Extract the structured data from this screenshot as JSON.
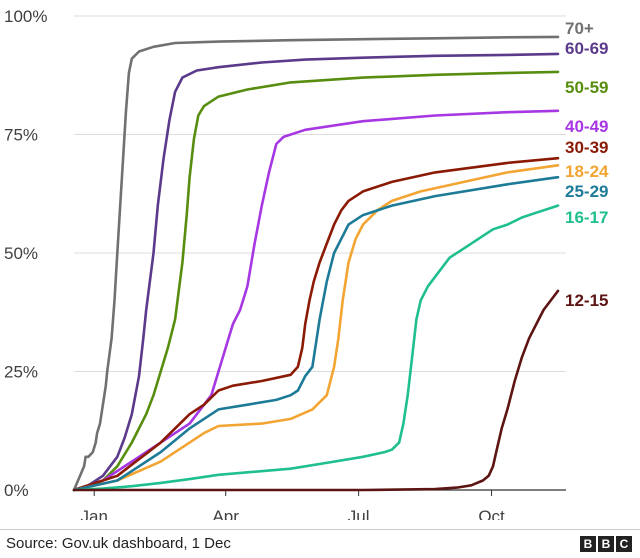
{
  "chart_data": {
    "type": "line",
    "title": "",
    "xlabel": "",
    "ylabel": "",
    "x_tick_labels": [
      "Jan",
      "Apr",
      "Jul",
      "Oct"
    ],
    "y_tick_labels": [
      "0%",
      "25%",
      "50%",
      "75%",
      "100%"
    ],
    "ylim": [
      0,
      100
    ],
    "grid": "horizontal",
    "series": [
      {
        "name": "70+",
        "color": "#717171",
        "points": [
          [
            0,
            0
          ],
          [
            7,
            5
          ],
          [
            8,
            7
          ],
          [
            10,
            7
          ],
          [
            13,
            8
          ],
          [
            15,
            10
          ],
          [
            16,
            12
          ],
          [
            18,
            14
          ],
          [
            20,
            18
          ],
          [
            22,
            22
          ],
          [
            23,
            25
          ],
          [
            26,
            32
          ],
          [
            28,
            40
          ],
          [
            30,
            50
          ],
          [
            32,
            60
          ],
          [
            34,
            70
          ],
          [
            36,
            80
          ],
          [
            38,
            88
          ],
          [
            40,
            91
          ],
          [
            45,
            92.5
          ],
          [
            55,
            93.5
          ],
          [
            70,
            94.3
          ],
          [
            100,
            94.6
          ],
          [
            150,
            94.9
          ],
          [
            200,
            95.1
          ],
          [
            250,
            95.3
          ],
          [
            300,
            95.5
          ],
          [
            335,
            95.6
          ]
        ]
      },
      {
        "name": "60-69",
        "color": "#5b3a8c",
        "points": [
          [
            0,
            0
          ],
          [
            10,
            1
          ],
          [
            20,
            3
          ],
          [
            25,
            5
          ],
          [
            30,
            7
          ],
          [
            35,
            11
          ],
          [
            40,
            16
          ],
          [
            45,
            24
          ],
          [
            48,
            32
          ],
          [
            50,
            38
          ],
          [
            55,
            50
          ],
          [
            58,
            60
          ],
          [
            62,
            70
          ],
          [
            66,
            78
          ],
          [
            70,
            84
          ],
          [
            75,
            87
          ],
          [
            85,
            88.5
          ],
          [
            100,
            89.2
          ],
          [
            130,
            90.2
          ],
          [
            160,
            90.8
          ],
          [
            200,
            91.2
          ],
          [
            250,
            91.6
          ],
          [
            300,
            91.8
          ],
          [
            335,
            92
          ]
        ]
      },
      {
        "name": "50-59",
        "color": "#588e0f",
        "points": [
          [
            0,
            0
          ],
          [
            10,
            1
          ],
          [
            20,
            2
          ],
          [
            30,
            5
          ],
          [
            40,
            10
          ],
          [
            50,
            16
          ],
          [
            55,
            20
          ],
          [
            60,
            25
          ],
          [
            65,
            30
          ],
          [
            70,
            36
          ],
          [
            75,
            48
          ],
          [
            78,
            58
          ],
          [
            80,
            66
          ],
          [
            83,
            74
          ],
          [
            86,
            79
          ],
          [
            90,
            81
          ],
          [
            100,
            83
          ],
          [
            120,
            84.5
          ],
          [
            150,
            86
          ],
          [
            200,
            87
          ],
          [
            250,
            87.6
          ],
          [
            300,
            88
          ],
          [
            335,
            88.2
          ]
        ]
      },
      {
        "name": "40-49",
        "color": "#a637e3",
        "points": [
          [
            0,
            0
          ],
          [
            20,
            2
          ],
          [
            40,
            6
          ],
          [
            60,
            10
          ],
          [
            80,
            14
          ],
          [
            95,
            20
          ],
          [
            100,
            25
          ],
          [
            105,
            30
          ],
          [
            110,
            35
          ],
          [
            115,
            38
          ],
          [
            120,
            43
          ],
          [
            125,
            52
          ],
          [
            130,
            60
          ],
          [
            135,
            67
          ],
          [
            140,
            73
          ],
          [
            145,
            74.5
          ],
          [
            160,
            76
          ],
          [
            200,
            77.8
          ],
          [
            250,
            79
          ],
          [
            300,
            79.7
          ],
          [
            335,
            80
          ]
        ]
      },
      {
        "name": "30-39",
        "color": "#8b1a05",
        "points": [
          [
            0,
            0
          ],
          [
            30,
            3
          ],
          [
            60,
            10
          ],
          [
            80,
            16
          ],
          [
            90,
            18
          ],
          [
            100,
            21
          ],
          [
            110,
            22
          ],
          [
            130,
            23
          ],
          [
            150,
            24.3
          ],
          [
            155,
            26
          ],
          [
            158,
            30
          ],
          [
            160,
            35
          ],
          [
            163,
            40
          ],
          [
            166,
            44
          ],
          [
            170,
            48
          ],
          [
            175,
            52
          ],
          [
            180,
            56
          ],
          [
            185,
            59
          ],
          [
            190,
            61
          ],
          [
            200,
            63
          ],
          [
            220,
            65
          ],
          [
            250,
            67
          ],
          [
            300,
            69
          ],
          [
            335,
            70
          ]
        ]
      },
      {
        "name": "18-24",
        "color": "#f2a533",
        "points": [
          [
            0,
            0
          ],
          [
            30,
            2
          ],
          [
            60,
            6
          ],
          [
            80,
            10
          ],
          [
            90,
            12
          ],
          [
            100,
            13.5
          ],
          [
            130,
            14
          ],
          [
            150,
            15
          ],
          [
            165,
            17
          ],
          [
            175,
            20
          ],
          [
            180,
            26
          ],
          [
            183,
            32
          ],
          [
            186,
            40
          ],
          [
            190,
            48
          ],
          [
            195,
            53
          ],
          [
            200,
            56
          ],
          [
            210,
            59
          ],
          [
            220,
            61
          ],
          [
            240,
            63
          ],
          [
            270,
            65
          ],
          [
            300,
            67
          ],
          [
            335,
            68.5
          ]
        ]
      },
      {
        "name": "25-29",
        "color": "#1d7b98",
        "points": [
          [
            0,
            0
          ],
          [
            30,
            2
          ],
          [
            60,
            8
          ],
          [
            80,
            13
          ],
          [
            90,
            15
          ],
          [
            100,
            17
          ],
          [
            120,
            18
          ],
          [
            140,
            19
          ],
          [
            150,
            20
          ],
          [
            155,
            21
          ],
          [
            160,
            24
          ],
          [
            165,
            26
          ],
          [
            170,
            36
          ],
          [
            175,
            44
          ],
          [
            180,
            50
          ],
          [
            185,
            53
          ],
          [
            190,
            56
          ],
          [
            200,
            58
          ],
          [
            220,
            60
          ],
          [
            250,
            62
          ],
          [
            300,
            64.5
          ],
          [
            335,
            66
          ]
        ]
      },
      {
        "name": "16-17",
        "color": "#1fbf8f",
        "points": [
          [
            0,
            0
          ],
          [
            20,
            0.3
          ],
          [
            40,
            0.8
          ],
          [
            60,
            1.5
          ],
          [
            80,
            2.3
          ],
          [
            100,
            3.2
          ],
          [
            150,
            4.5
          ],
          [
            180,
            6
          ],
          [
            200,
            7
          ],
          [
            215,
            8
          ],
          [
            220,
            8.5
          ],
          [
            225,
            10
          ],
          [
            228,
            14
          ],
          [
            231,
            20
          ],
          [
            234,
            28
          ],
          [
            237,
            36
          ],
          [
            240,
            40
          ],
          [
            245,
            43
          ],
          [
            250,
            45
          ],
          [
            255,
            47
          ],
          [
            260,
            49
          ],
          [
            270,
            51
          ],
          [
            280,
            53
          ],
          [
            290,
            55
          ],
          [
            300,
            56
          ],
          [
            310,
            57.5
          ],
          [
            320,
            58.5
          ],
          [
            330,
            59.5
          ],
          [
            335,
            60
          ]
        ]
      },
      {
        "name": "12-15",
        "color": "#5c1512",
        "points": [
          [
            0,
            0
          ],
          [
            200,
            0
          ],
          [
            250,
            0.2
          ],
          [
            265,
            0.5
          ],
          [
            275,
            1
          ],
          [
            283,
            2
          ],
          [
            287,
            3
          ],
          [
            290,
            5
          ],
          [
            293,
            9
          ],
          [
            296,
            13
          ],
          [
            300,
            17
          ],
          [
            305,
            23
          ],
          [
            310,
            28
          ],
          [
            315,
            32
          ],
          [
            320,
            35
          ],
          [
            325,
            38
          ],
          [
            330,
            40
          ],
          [
            335,
            42
          ]
        ]
      }
    ]
  },
  "footer": {
    "source": "Source: Gov.uk dashboard, 1 Dec",
    "logo": [
      "B",
      "B",
      "C"
    ]
  }
}
